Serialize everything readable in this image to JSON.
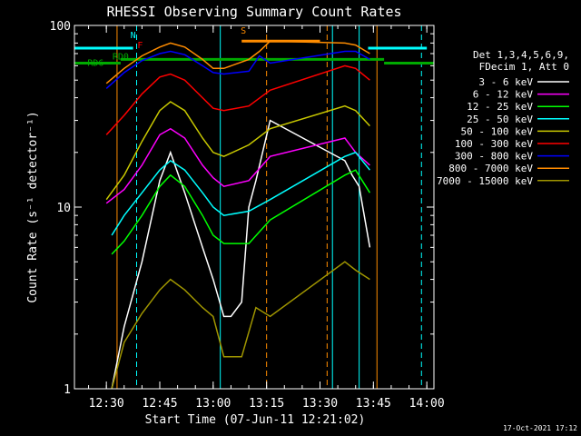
{
  "chart_data": {
    "type": "line",
    "title": "RHESSI Observing Summary Count Rates",
    "xlabel": "Start Time (07-Jun-11 12:21:02)",
    "ylabel": "Count Rate (s⁻¹ detector⁻¹)",
    "yscale": "log",
    "ylim": [
      1,
      100
    ],
    "xlim": [
      "12:21:02",
      "14:02:00"
    ],
    "x_ticks": [
      "12:30",
      "12:45",
      "13:00",
      "13:15",
      "13:30",
      "13:45",
      "14:00"
    ],
    "y_ticks": [
      "1",
      "10",
      "100"
    ],
    "legend_header": [
      "Det 1,3,4,5,6,9,",
      "FDecim 1, Att 0"
    ],
    "legend_position": "right",
    "grid": false,
    "series": [
      {
        "name": "3 - 6 keV",
        "color": "#ffffff",
        "x": [
          "12:31:30",
          "12:35:00",
          "12:40:00",
          "12:45:00",
          "12:48:00",
          "12:52:00",
          "12:57:00",
          "13:00:00",
          "13:03:00",
          "13:05:00",
          "13:08:00",
          "13:10:00",
          "13:12:00",
          "13:16:00",
          "13:37:00",
          "13:39:00",
          "13:41:00",
          "13:44:00"
        ],
        "values": [
          1.0,
          2.2,
          5.0,
          14,
          20,
          12,
          6.0,
          4.0,
          2.5,
          2.5,
          3.0,
          10,
          14,
          30,
          18,
          15,
          13,
          6.0
        ]
      },
      {
        "name": "6 - 12 keV",
        "color": "#ff00ff",
        "x": [
          "12:30:00",
          "12:35:00",
          "12:40:00",
          "12:45:00",
          "12:48:00",
          "12:52:00",
          "12:57:00",
          "13:00:00",
          "13:03:00",
          "13:10:00",
          "13:16:00",
          "13:37:00",
          "13:40:00",
          "13:44:00"
        ],
        "values": [
          10.5,
          12.5,
          17,
          25,
          27,
          24,
          17,
          14.5,
          13,
          14,
          19,
          24,
          20,
          17
        ]
      },
      {
        "name": "12 - 25 keV",
        "color": "#00ff00",
        "x": [
          "12:31:30",
          "12:35:00",
          "12:40:00",
          "12:45:00",
          "12:48:00",
          "12:52:00",
          "12:57:00",
          "13:00:00",
          "13:03:00",
          "13:10:00",
          "13:16:00",
          "13:37:00",
          "13:40:00",
          "13:44:00"
        ],
        "values": [
          5.5,
          6.5,
          9,
          13,
          15,
          13,
          9,
          7,
          6.3,
          6.3,
          8.5,
          15,
          16,
          12
        ]
      },
      {
        "name": "25 - 50 keV",
        "color": "#00ffff",
        "x": [
          "12:31:30",
          "12:35:00",
          "12:40:00",
          "12:45:00",
          "12:48:00",
          "12:52:00",
          "12:57:00",
          "13:00:00",
          "13:03:00",
          "13:10:00",
          "13:16:00",
          "13:37:00",
          "13:40:00",
          "13:44:00"
        ],
        "values": [
          7,
          9,
          12,
          16,
          18,
          16,
          12,
          10,
          9,
          9.5,
          11,
          19,
          20,
          16
        ]
      },
      {
        "name": "50 - 100 keV",
        "color": "#c8c800",
        "x": [
          "12:30:00",
          "12:35:00",
          "12:40:00",
          "12:45:00",
          "12:48:00",
          "12:52:00",
          "12:57:00",
          "13:00:00",
          "13:03:00",
          "13:10:00",
          "13:16:00",
          "13:37:00",
          "13:40:00",
          "13:44:00"
        ],
        "values": [
          11,
          15,
          23,
          34,
          38,
          34,
          24,
          20,
          19,
          22,
          27,
          36,
          34,
          28
        ]
      },
      {
        "name": "100 - 300 keV",
        "color": "#ff0000",
        "x": [
          "12:30:00",
          "12:35:00",
          "12:40:00",
          "12:45:00",
          "12:48:00",
          "12:52:00",
          "12:57:00",
          "13:00:00",
          "13:03:00",
          "13:10:00",
          "13:16:00",
          "13:37:00",
          "13:40:00",
          "13:44:00"
        ],
        "values": [
          25,
          32,
          42,
          52,
          54,
          50,
          40,
          35,
          34,
          36,
          44,
          60,
          58,
          50
        ]
      },
      {
        "name": "300 - 800 keV",
        "color": "#0000ff",
        "x": [
          "12:30:00",
          "12:35:00",
          "12:40:00",
          "12:45:00",
          "12:48:00",
          "12:52:00",
          "12:57:00",
          "13:00:00",
          "13:03:00",
          "13:10:00",
          "13:13:00",
          "13:16:00",
          "13:37:00",
          "13:40:00",
          "13:44:00"
        ],
        "values": [
          45,
          55,
          64,
          70,
          72,
          69,
          60,
          55,
          54,
          56,
          68,
          62,
          72,
          72,
          65
        ]
      },
      {
        "name": "800 - 7000 keV",
        "color": "#ff8c00",
        "x": [
          "12:30:00",
          "12:35:00",
          "12:40:00",
          "12:45:00",
          "12:48:00",
          "12:52:00",
          "12:57:00",
          "13:00:00",
          "13:03:00",
          "13:10:00",
          "13:13:00",
          "13:16:00",
          "13:37:00",
          "13:40:00",
          "13:44:00"
        ],
        "values": [
          48,
          58,
          68,
          76,
          80,
          76,
          65,
          58,
          58,
          65,
          72,
          82,
          80,
          78,
          70
        ]
      },
      {
        "name": "7000 - 15000 keV",
        "color": "#a09600",
        "x": [
          "12:31:30",
          "12:35:00",
          "12:40:00",
          "12:45:00",
          "12:48:00",
          "12:52:00",
          "12:57:00",
          "13:00:00",
          "13:03:00",
          "13:08:00",
          "13:12:00",
          "13:16:00",
          "13:37:00",
          "13:40:00",
          "13:44:00"
        ],
        "values": [
          1.0,
          1.8,
          2.6,
          3.5,
          4.0,
          3.5,
          2.8,
          2.5,
          1.5,
          1.5,
          2.8,
          2.5,
          5.0,
          4.5,
          4.0
        ]
      }
    ],
    "annotations": [
      {
        "label": "N",
        "color": "#00ffff",
        "x": "12:37:30",
        "y": 85
      },
      {
        "label": "F",
        "color": "#ff0000",
        "x": "12:39:30",
        "y": 75
      },
      {
        "label": "S",
        "color": "#ff8c00",
        "x": "13:08:30",
        "y": 90
      },
      {
        "label": "RD0",
        "color": "#00aa00",
        "x": "12:34:00",
        "y": 65
      },
      {
        "label": "RD6",
        "color": "#00aa00",
        "x": "12:27:00",
        "y": 60
      }
    ],
    "overlay_lines": [
      {
        "name": "orbit-night-bar",
        "color": "#00ffff",
        "segments": [
          [
            "12:21:02",
            "12:37:30",
            75
          ],
          [
            "13:43:30",
            "14:00:00",
            75
          ]
        ]
      },
      {
        "name": "saa-bar",
        "color": "#ff8c00",
        "segments": [
          [
            "13:08:00",
            "13:30:00",
            82
          ]
        ]
      },
      {
        "name": "decimation-bar",
        "color": "#00aa00",
        "segments": [
          [
            "12:21:02",
            "12:34:00",
            62
          ],
          [
            "12:34:00",
            "13:48:00",
            65
          ],
          [
            "13:48:00",
            "14:02:00",
            62
          ]
        ]
      }
    ],
    "vertical_markers": [
      {
        "color": "#00ffff",
        "x": [
          "12:38:30",
          "13:02:00",
          "13:33:30",
          "13:41:00",
          "13:58:30"
        ],
        "dashed": [
          true,
          false,
          false,
          false,
          true
        ]
      },
      {
        "color": "#ff8c00",
        "x": [
          "12:33:00",
          "13:15:00",
          "13:32:00",
          "13:46:00"
        ],
        "dashed": [
          false,
          true,
          true,
          false
        ]
      }
    ]
  },
  "footer": {
    "timestamp": "17-Oct-2021 17:12"
  }
}
